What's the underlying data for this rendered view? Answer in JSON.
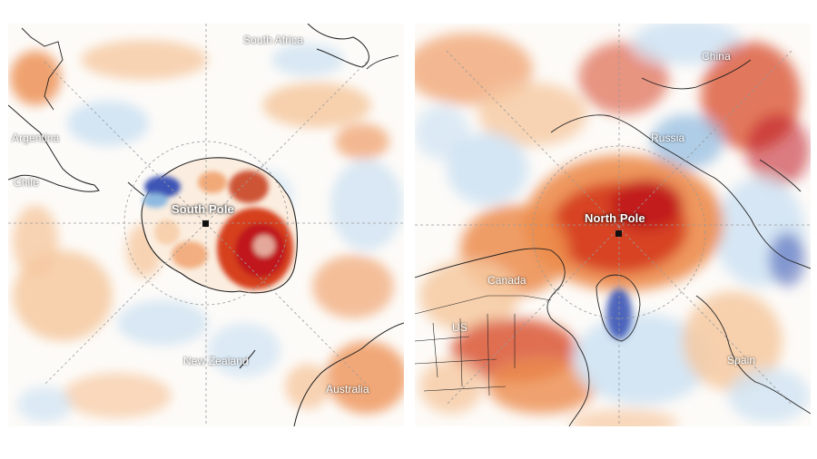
{
  "colors": {
    "warm_light": "#f6c9a1",
    "warm_mid": "#ec8c4c",
    "warm_strong": "#d6401e",
    "hot": "#c0171d",
    "cool_light": "#cfe3f3",
    "cool_mid": "#8db9e0",
    "cool_strong": "#3c55b5",
    "coastline": "#222222",
    "grid": "#9a9a9a"
  },
  "south": {
    "pole_label": "South Pole",
    "labels": {
      "south_africa": "South Africa",
      "argentina": "Argentina",
      "chile": "Chile",
      "new_zealand": "New Zealand",
      "australia": "Australia"
    }
  },
  "north": {
    "pole_label": "North Pole",
    "labels": {
      "china": "China",
      "russia": "Russia",
      "canada": "Canada",
      "us": "US",
      "spain": "Spain"
    }
  }
}
